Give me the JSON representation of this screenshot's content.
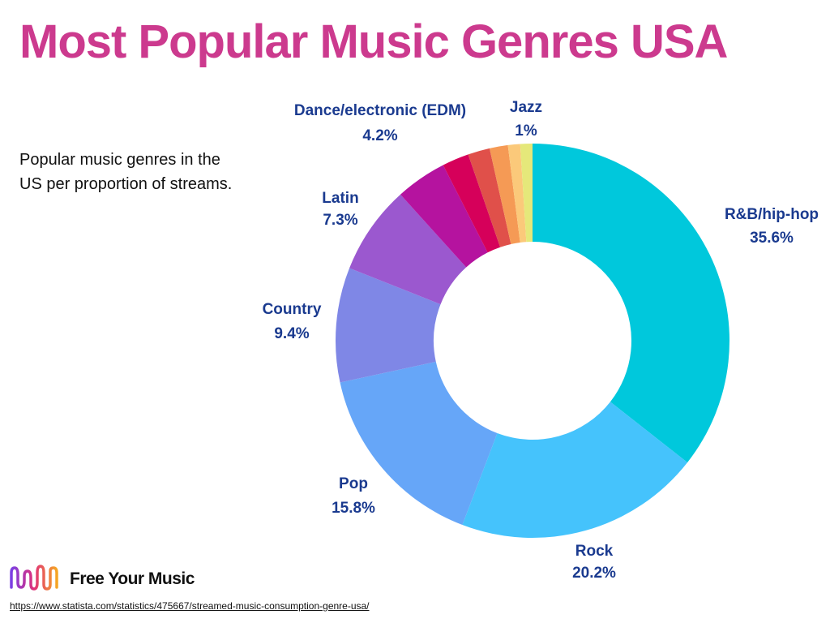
{
  "chart_data": {
    "type": "donut",
    "title": "Most Popular Music Genres USA",
    "subtitle": "Popular music genres in the US per proportion of streams.",
    "categories": [
      "R&B/hip-hop",
      "Rock",
      "Pop",
      "Country",
      "Latin",
      "Dance/electronic (EDM)",
      null,
      null,
      null,
      null,
      "Jazz"
    ],
    "values": [
      35.6,
      20.2,
      15.8,
      9.4,
      7.3,
      4.2,
      2.2,
      1.8,
      1.5,
      1,
      1
    ],
    "value_labels": [
      "35.6%",
      "20.2%",
      "15.8%",
      "9.4%",
      "7.3%",
      "4.2%",
      null,
      null,
      null,
      null,
      "1%"
    ],
    "colors": [
      "#00c8dc",
      "#45c3fc",
      "#66a6f8",
      "#7f87e6",
      "#9b58cf",
      "#b5139f",
      "#d6005a",
      "#e0504a",
      "#f59a55",
      "#fbc97a",
      "#e5e87a"
    ]
  },
  "logo": "Free Your Music",
  "source": "https://www.statista.com/statistics/475667/streamed-music-consumption-genre-usa/"
}
